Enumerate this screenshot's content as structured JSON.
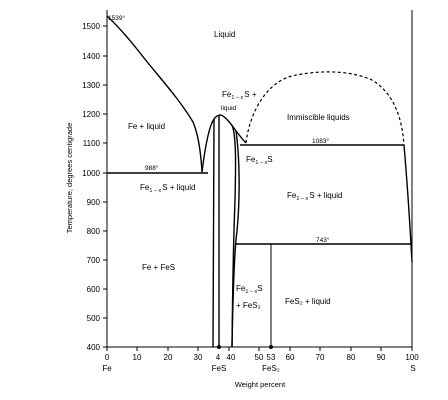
{
  "diagram": {
    "y_axis_title": "Temperature, degrees centigrade",
    "x_axis_title": "Weight percent",
    "y_ticks": [
      "400",
      "500",
      "600",
      "700",
      "800",
      "900",
      "1000",
      "1100",
      "1200",
      "1300",
      "1400",
      "1500"
    ],
    "x_ticks": [
      "0",
      "10",
      "20",
      "30",
      "40",
      "50",
      "60",
      "70",
      "80",
      "90",
      "100"
    ],
    "x_end_labels": {
      "left": "Fe",
      "right": "S"
    },
    "compound_labels": {
      "fes_value": "4",
      "fes_name": "FeS",
      "fes2_value": "53",
      "fes2_name": "FeS₂"
    },
    "temperatures": {
      "t1539": "1539°",
      "t988": "988°",
      "t1083": "1083°",
      "t743": "743°"
    },
    "regions": {
      "liquid": "Liquid",
      "fe_liquid": "Fe + liquid",
      "fes_liquid_top_a": "Fe",
      "fes_liquid_top_sub": "1 – x",
      "fes_liquid_top_b": "S +",
      "fes_liquid_top_c": "liquid",
      "immiscible": "Immiscible liquids",
      "fes_phase_a": "Fe",
      "fes_phase_sub": "1 – x",
      "fes_phase_b": "S",
      "fes_liquid_left_a": "Fe",
      "fes_liquid_left_sub": "1 – x",
      "fes_liquid_left_b": "S + liquid",
      "fes_liquid_right_a": "Fe",
      "fes_liquid_right_sub": "1 – x",
      "fes_liquid_right_b": "S + liquid",
      "fe_fes": "Fe + FeS",
      "fes_fes2_a": "Fe",
      "fes_fes2_sub": "1 – x",
      "fes_fes2_b": "S",
      "fes_fes2_c": "+ FeS₂",
      "fes2_liquid": "FeS₂ + liquid"
    }
  }
}
